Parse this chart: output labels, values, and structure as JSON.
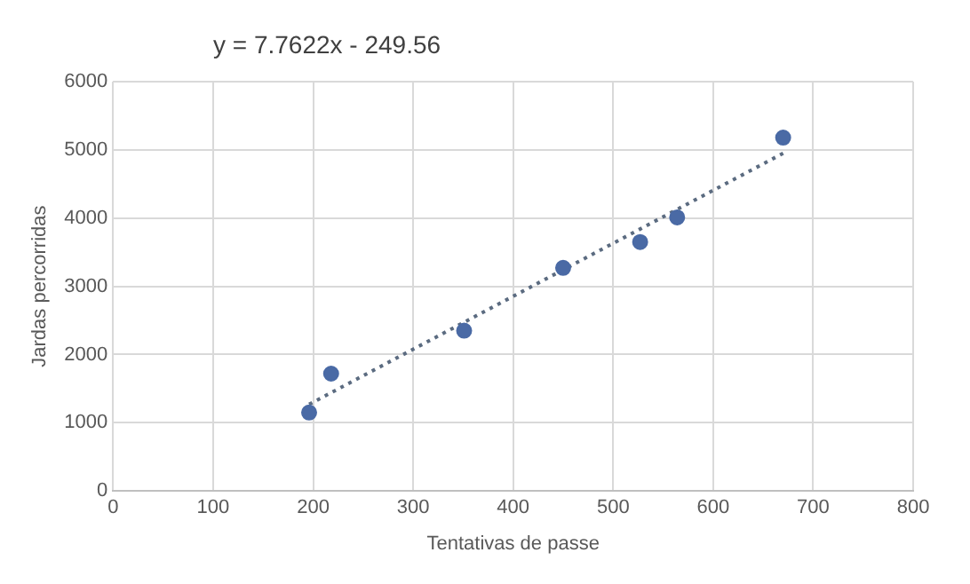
{
  "chart_data": {
    "type": "scatter",
    "xlabel": "Tentativas de passe",
    "ylabel": "Jardas percorridas",
    "annotations": [
      "y = 7.7622x - 249.56"
    ],
    "xlim": [
      0,
      800
    ],
    "xticks": [
      0,
      100,
      200,
      300,
      400,
      500,
      600,
      700,
      800
    ],
    "ylim": [
      0,
      6000
    ],
    "yticks": [
      0,
      1000,
      2000,
      3000,
      4000,
      5000,
      6000
    ],
    "grid": true,
    "marker": "circle",
    "series": [
      {
        "type": "scatter",
        "color": "#4a6aa5",
        "x": [
          196,
          218,
          351,
          450,
          527,
          564,
          670
        ],
        "values": [
          1150,
          1720,
          2350,
          3270,
          3650,
          4010,
          5180
        ]
      },
      {
        "type": "line",
        "color": "#5b6b80",
        "line_style": "dotted",
        "marker": "none",
        "x": [
          196,
          670
        ],
        "values": [
          1270,
          4950
        ]
      }
    ]
  }
}
